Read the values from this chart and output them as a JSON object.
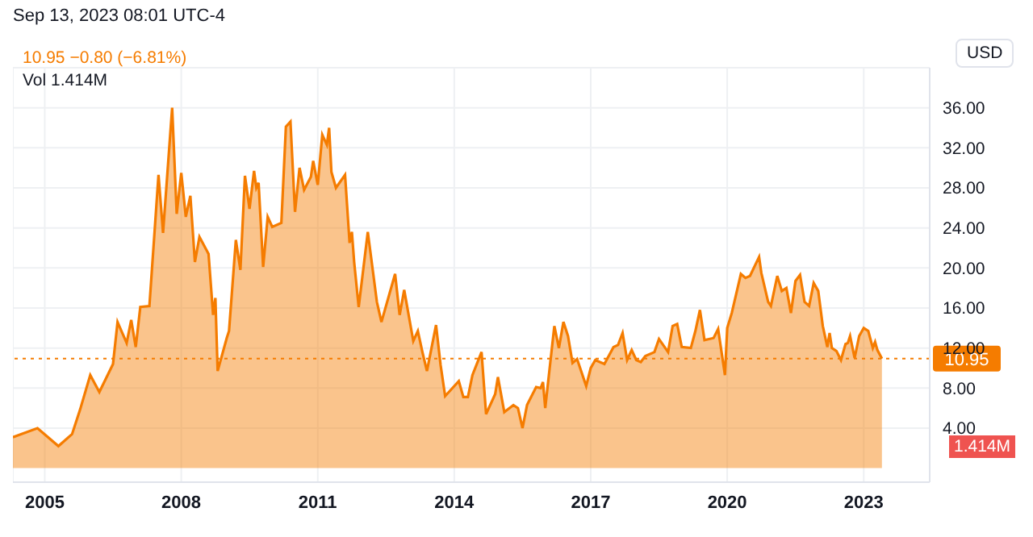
{
  "chart_data": {
    "type": "area",
    "subtitle": "Sep 13, 2023 08:01 UTC-4",
    "annotations": [
      "10.95 −0.80 (−6.81%)",
      "Vol 1.414M",
      "USD",
      "1.414M"
    ],
    "x": [
      2004.3,
      2004.84,
      2005.3,
      2005.6,
      2005.78,
      2006.0,
      2006.2,
      2006.5,
      2006.6,
      2006.8,
      2006.9,
      2007.0,
      2007.1,
      2007.3,
      2007.5,
      2007.6,
      2007.8,
      2007.9,
      2008.0,
      2008.1,
      2008.2,
      2008.3,
      2008.4,
      2008.6,
      2008.7,
      2008.75,
      2008.8,
      2009.0,
      2009.05,
      2009.2,
      2009.3,
      2009.4,
      2009.5,
      2009.6,
      2009.65,
      2009.7,
      2009.8,
      2009.9,
      2010.0,
      2010.2,
      2010.3,
      2010.4,
      2010.5,
      2010.6,
      2010.7,
      2010.85,
      2010.9,
      2011.0,
      2011.1,
      2011.2,
      2011.25,
      2011.3,
      2011.4,
      2011.6,
      2011.7,
      2011.75,
      2011.8,
      2011.9,
      2012.1,
      2012.3,
      2012.4,
      2012.7,
      2012.8,
      2012.9,
      2013.1,
      2013.2,
      2013.3,
      2013.4,
      2013.6,
      2013.7,
      2013.8,
      2014.1,
      2014.2,
      2014.3,
      2014.4,
      2014.6,
      2014.7,
      2014.9,
      2014.96,
      2015.1,
      2015.3,
      2015.4,
      2015.5,
      2015.6,
      2015.8,
      2015.9,
      2015.95,
      2016.0,
      2016.2,
      2016.3,
      2016.4,
      2016.5,
      2016.6,
      2016.7,
      2016.9,
      2017.0,
      2017.1,
      2017.3,
      2017.5,
      2017.6,
      2017.7,
      2017.8,
      2017.9,
      2018.0,
      2018.1,
      2018.2,
      2018.4,
      2018.5,
      2018.7,
      2018.8,
      2018.9,
      2019.0,
      2019.2,
      2019.3,
      2019.4,
      2019.5,
      2019.7,
      2019.8,
      2019.95,
      2020.0,
      2020.1,
      2020.3,
      2020.4,
      2020.5,
      2020.7,
      2020.75,
      2020.9,
      2020.96,
      2021.1,
      2021.2,
      2021.3,
      2021.4,
      2021.5,
      2021.6,
      2021.7,
      2021.8,
      2021.9,
      2022.0,
      2022.1,
      2022.2,
      2022.25,
      2022.3,
      2022.4,
      2022.5,
      2022.6,
      2022.65,
      2022.7,
      2022.8,
      2022.9,
      2023.0,
      2023.1,
      2023.2,
      2023.25,
      2023.3,
      2023.4
    ],
    "values": [
      3.1,
      4.0,
      2.2,
      3.4,
      5.9,
      9.3,
      7.6,
      10.4,
      14.6,
      12.5,
      14.8,
      12.1,
      16.1,
      16.2,
      29.3,
      23.5,
      36.0,
      25.4,
      29.5,
      25.1,
      27.2,
      20.6,
      23.1,
      21.4,
      15.3,
      17.0,
      9.7,
      13.0,
      13.7,
      22.8,
      19.8,
      29.2,
      25.9,
      29.7,
      28.0,
      28.5,
      20.1,
      25.1,
      24.1,
      24.5,
      34.1,
      34.6,
      25.6,
      30.0,
      27.8,
      29.1,
      30.7,
      28.3,
      33.3,
      32.3,
      34.0,
      29.6,
      28.0,
      29.3,
      22.5,
      23.6,
      20.6,
      16.1,
      23.6,
      16.6,
      14.6,
      19.4,
      15.3,
      17.8,
      12.7,
      13.7,
      11.6,
      9.7,
      14.3,
      10.3,
      7.2,
      8.7,
      7.1,
      7.1,
      9.3,
      11.6,
      5.4,
      7.4,
      9.1,
      5.6,
      6.3,
      6.0,
      4.0,
      6.3,
      8.1,
      8.0,
      8.6,
      6.0,
      14.2,
      12.0,
      14.6,
      13.2,
      10.5,
      10.9,
      8.2,
      10.0,
      10.8,
      10.4,
      12.1,
      12.3,
      13.5,
      10.8,
      11.8,
      10.8,
      10.6,
      11.2,
      11.6,
      12.9,
      11.6,
      14.2,
      14.4,
      12.1,
      12.0,
      13.7,
      15.8,
      12.8,
      13.0,
      13.9,
      9.3,
      14.0,
      15.5,
      19.4,
      19.0,
      19.2,
      21.1,
      19.5,
      16.6,
      16.2,
      19.2,
      17.7,
      18.0,
      15.5,
      18.7,
      19.3,
      16.6,
      16.2,
      18.5,
      17.7,
      14.2,
      12.1,
      13.5,
      12.0,
      11.7,
      10.8,
      12.4,
      12.5,
      13.2,
      11.0,
      13.2,
      14.0,
      13.7,
      12.0,
      12.6,
      11.8,
      10.95
    ],
    "color": "#f57c00",
    "xlim": [
      2004.3,
      2024.45
    ],
    "xticks": [
      {
        "value": 2005,
        "label": "2005"
      },
      {
        "value": 2008,
        "label": "2008"
      },
      {
        "value": 2011,
        "label": "2011"
      },
      {
        "value": 2014,
        "label": "2014"
      },
      {
        "value": 2017,
        "label": "2017"
      },
      {
        "value": 2020,
        "label": "2020"
      },
      {
        "value": 2023,
        "label": "2023"
      }
    ],
    "ylim": [
      -1.4,
      40
    ],
    "yticks": [
      {
        "value": 4,
        "label": "4.00"
      },
      {
        "value": 8,
        "label": "8.00"
      },
      {
        "value": 12,
        "label": "12.00"
      },
      {
        "value": 16,
        "label": "16.00"
      },
      {
        "value": 20,
        "label": "20.00"
      },
      {
        "value": 24,
        "label": "24.00"
      },
      {
        "value": 28,
        "label": "28.00"
      },
      {
        "value": 32,
        "label": "32.00"
      },
      {
        "value": 36,
        "label": "36.00"
      }
    ],
    "ref_lines": [
      {
        "axis": "y",
        "value": 10.95,
        "label": "10.95",
        "color": "#f57c00",
        "line_style": "dotted"
      }
    ],
    "grid": true
  }
}
